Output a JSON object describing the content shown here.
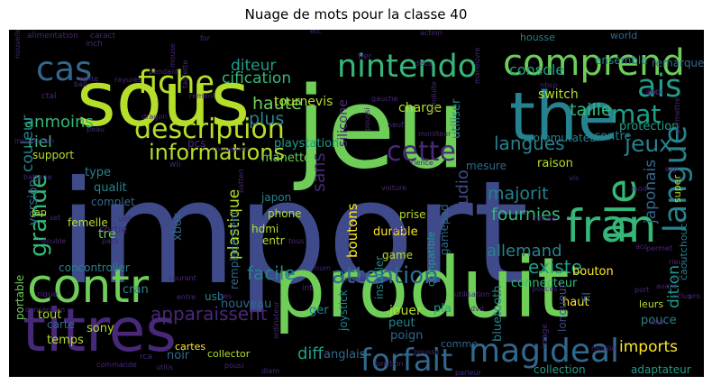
{
  "figure": {
    "title": "Nuage de mots pour la classe 40"
  },
  "palette": {
    "background": "#000000",
    "viridis": [
      "#440154",
      "#482878",
      "#3e4a89",
      "#31688e",
      "#26828e",
      "#1f9e89",
      "#35b779",
      "#6ece58",
      "#b5de2b",
      "#fde725"
    ]
  },
  "words": [
    {
      "text": "import",
      "color": "#3e4a89"
    },
    {
      "text": "produit",
      "color": "#6ece58"
    },
    {
      "text": "jeu",
      "color": "#6ece58"
    },
    {
      "text": "sous",
      "color": "#b5de2b"
    },
    {
      "text": "titres",
      "color": "#482878"
    },
    {
      "text": "the",
      "color": "#26828e"
    },
    {
      "text": "contr",
      "color": "#6ece58"
    },
    {
      "text": "comprend",
      "color": "#6ece58"
    },
    {
      "text": "fran",
      "color": "#35b779"
    },
    {
      "text": "nintendo",
      "color": "#35b779"
    },
    {
      "text": "description",
      "color": "#b5de2b"
    },
    {
      "text": "fiche",
      "color": "#b5de2b"
    },
    {
      "text": "cas",
      "color": "#31688e"
    },
    {
      "text": "magideal",
      "color": "#31688e"
    },
    {
      "text": "forfait",
      "color": "#31688e"
    },
    {
      "text": "attention",
      "color": "#31688e"
    },
    {
      "text": "ble",
      "color": "#35b779"
    },
    {
      "text": "mat",
      "color": "#1f9e89"
    },
    {
      "text": "ais",
      "color": "#1f9e89"
    },
    {
      "text": "langue",
      "color": "#26828e"
    },
    {
      "text": "cette",
      "color": "#482878"
    },
    {
      "text": "jeux",
      "color": "#26828e"
    },
    {
      "text": "informations",
      "color": "#b5de2b"
    },
    {
      "text": "langues",
      "color": "#26828e"
    },
    {
      "text": "grande",
      "color": "#35b779"
    },
    {
      "text": "taille",
      "color": "#35b779"
    },
    {
      "text": "apparaissent",
      "color": "#482878"
    },
    {
      "text": "diteur",
      "color": "#1f9e89"
    },
    {
      "text": "cification",
      "color": "#35b779"
    },
    {
      "text": "anmoins",
      "color": "#35b779"
    },
    {
      "text": "couleur",
      "color": "#26828e"
    },
    {
      "text": "haute",
      "color": "#6ece58"
    },
    {
      "text": "plus",
      "color": "#26828e"
    },
    {
      "text": "riel",
      "color": "#35b779"
    },
    {
      "text": "majorit",
      "color": "#26828e"
    },
    {
      "text": "fournies",
      "color": "#35b779"
    },
    {
      "text": "allemand",
      "color": "#26828e"
    },
    {
      "text": "existe",
      "color": "#1f9e89"
    },
    {
      "text": "facile",
      "color": "#26828e"
    },
    {
      "text": "diff",
      "color": "#1f9e89"
    },
    {
      "text": "imports",
      "color": "#fde725"
    },
    {
      "text": "console",
      "color": "#1f9e89"
    },
    {
      "text": "boutons",
      "color": "#fde725"
    },
    {
      "text": "sans",
      "color": "#482878"
    },
    {
      "text": "audio",
      "color": "#3e4a89"
    },
    {
      "text": "japonais",
      "color": "#31688e"
    },
    {
      "text": "dition",
      "color": "#1f9e89"
    },
    {
      "text": "version",
      "color": "#31688e"
    },
    {
      "text": "plastique",
      "color": "#b5de2b"
    },
    {
      "text": "xbox",
      "color": "#31688e"
    },
    {
      "text": "silicone",
      "color": "#482878"
    },
    {
      "text": "manette",
      "color": "#6ece58"
    },
    {
      "text": "tournevis",
      "color": "#b5de2b"
    },
    {
      "text": "playstation",
      "color": "#1f9e89"
    },
    {
      "text": "pcs",
      "color": "#482878"
    },
    {
      "text": "utiliser",
      "color": "#26828e"
    },
    {
      "text": "charge",
      "color": "#b5de2b"
    },
    {
      "text": "switch",
      "color": "#b5de2b"
    },
    {
      "text": "remarque",
      "color": "#31688e"
    },
    {
      "text": "ensemble",
      "color": "#26828e"
    },
    {
      "text": "housse",
      "color": "#26828e"
    },
    {
      "text": "world",
      "color": "#31688e"
    },
    {
      "text": "protection",
      "color": "#1f9e89"
    },
    {
      "text": "commutateur",
      "color": "#26828e"
    },
    {
      "text": "contre",
      "color": "#26828e"
    },
    {
      "text": "mesure",
      "color": "#31688e"
    },
    {
      "text": "raison",
      "color": "#b5de2b"
    },
    {
      "text": "support",
      "color": "#b5de2b"
    },
    {
      "text": "type",
      "color": "#26828e"
    },
    {
      "text": "qualit",
      "color": "#26828e"
    },
    {
      "text": "complet",
      "color": "#31688e"
    },
    {
      "text": "femelle",
      "color": "#b5de2b"
    },
    {
      "text": "jap",
      "color": "#b5de2b"
    },
    {
      "text": "tre",
      "color": "#6ece58"
    },
    {
      "text": "sortie",
      "color": "#482878"
    },
    {
      "text": "japon",
      "color": "#26828e"
    },
    {
      "text": "phone",
      "color": "#b5de2b"
    },
    {
      "text": "hdmi",
      "color": "#b5de2b"
    },
    {
      "text": "entr",
      "color": "#b5de2b"
    },
    {
      "text": "prise",
      "color": "#b5de2b"
    },
    {
      "text": "durable",
      "color": "#fde725"
    },
    {
      "text": "compatible",
      "color": "#1f9e89"
    },
    {
      "text": "gamepad",
      "color": "#31688e"
    },
    {
      "text": "game",
      "color": "#b5de2b"
    },
    {
      "text": "installer",
      "color": "#26828e"
    },
    {
      "text": "concontroller",
      "color": "#26828e"
    },
    {
      "text": "remplacement",
      "color": "#31688e"
    },
    {
      "text": "usb",
      "color": "#26828e"
    },
    {
      "text": "nouveau",
      "color": "#31688e"
    },
    {
      "text": "cran",
      "color": "#26828e"
    },
    {
      "text": "sony",
      "color": "#b5de2b"
    },
    {
      "text": "temps",
      "color": "#b5de2b"
    },
    {
      "text": "carte",
      "color": "#31688e"
    },
    {
      "text": "tout",
      "color": "#b5de2b"
    },
    {
      "text": "portable",
      "color": "#6ece58"
    },
    {
      "text": "noir",
      "color": "#31688e"
    },
    {
      "text": "joystick",
      "color": "#26828e"
    },
    {
      "text": "jouer",
      "color": "#b5de2b"
    },
    {
      "text": "peut",
      "color": "#26828e"
    },
    {
      "text": "pla",
      "color": "#1f9e89"
    },
    {
      "text": "poign",
      "color": "#31688e"
    },
    {
      "text": "anglais",
      "color": "#31688e"
    },
    {
      "text": "ger",
      "color": "#26828e"
    },
    {
      "text": "bluetooth",
      "color": "#26828e"
    },
    {
      "text": "connecteur",
      "color": "#35b779"
    },
    {
      "text": "bouton",
      "color": "#fde725"
    },
    {
      "text": "haut",
      "color": "#fde725"
    },
    {
      "text": "longueur",
      "color": "#3e4a89"
    },
    {
      "text": "pouce",
      "color": "#26828e"
    },
    {
      "text": "adaptateur",
      "color": "#1f9e89"
    },
    {
      "text": "collection",
      "color": "#1f9e89"
    },
    {
      "text": "comme",
      "color": "#31688e"
    },
    {
      "text": "cartes",
      "color": "#fde725"
    },
    {
      "text": "collector",
      "color": "#b5de2b"
    },
    {
      "text": "caoutchouc",
      "color": "#26828e"
    },
    {
      "text": "super",
      "color": "#b5de2b"
    },
    {
      "text": "leurs",
      "color": "#b5de2b"
    },
    {
      "text": "fil",
      "color": "#31688e"
    },
    {
      "text": "alimentation",
      "color": "#482878"
    },
    {
      "text": "caract",
      "color": "#482878"
    },
    {
      "text": "inch",
      "color": "#482878"
    },
    {
      "text": "ctal",
      "color": "#482878"
    },
    {
      "text": "batterie",
      "color": "#482878"
    },
    {
      "text": "connexion",
      "color": "#482878"
    },
    {
      "text": "installation",
      "color": "#482878"
    },
    {
      "text": "dragon",
      "color": "#482878"
    },
    {
      "text": "wii",
      "color": "#482878"
    },
    {
      "text": "peau",
      "color": "#482878"
    },
    {
      "text": "pack",
      "color": "#482878"
    },
    {
      "text": "double",
      "color": "#482878"
    },
    {
      "text": "rique",
      "color": "#482878"
    },
    {
      "text": "conception",
      "color": "#482878"
    },
    {
      "text": "commande",
      "color": "#482878"
    },
    {
      "text": "utilis",
      "color": "#482878"
    },
    {
      "text": "rca",
      "color": "#482878"
    },
    {
      "text": "entre",
      "color": "#482878"
    },
    {
      "text": "tres",
      "color": "#482878"
    },
    {
      "text": "courant",
      "color": "#482878"
    },
    {
      "text": "signal",
      "color": "#482878"
    },
    {
      "text": "utilisation",
      "color": "#482878"
    },
    {
      "text": "num",
      "color": "#482878"
    },
    {
      "text": "diam",
      "color": "#482878"
    },
    {
      "text": "fonction",
      "color": "#482878"
    },
    {
      "text": "parleur",
      "color": "#482878"
    },
    {
      "text": "mobile",
      "color": "#482878"
    },
    {
      "text": "image",
      "color": "#482878"
    },
    {
      "text": "dvd",
      "color": "#482878"
    },
    {
      "text": "voiture",
      "color": "#482878"
    },
    {
      "text": "moniteur",
      "color": "#482878"
    },
    {
      "text": "rience",
      "color": "#482878"
    },
    {
      "text": "gauche",
      "color": "#482878"
    },
    {
      "text": "neuf",
      "color": "#482878"
    },
    {
      "text": "deux",
      "color": "#482878"
    },
    {
      "text": "tier",
      "color": "#482878"
    },
    {
      "text": "action",
      "color": "#482878"
    },
    {
      "text": "rence",
      "color": "#482878"
    },
    {
      "text": "mod",
      "color": "#482878"
    },
    {
      "text": "vis",
      "color": "#482878"
    },
    {
      "text": "exp",
      "color": "#482878"
    },
    {
      "text": "acc",
      "color": "#482878"
    },
    {
      "text": "permet",
      "color": "#482878"
    },
    {
      "text": "port",
      "color": "#482878"
    },
    {
      "text": "inclus",
      "color": "#482878"
    },
    {
      "text": "avant",
      "color": "#482878"
    },
    {
      "text": "kit",
      "color": "#482878"
    },
    {
      "text": "pro",
      "color": "#482878"
    },
    {
      "text": "jack",
      "color": "#482878"
    },
    {
      "text": "and",
      "color": "#482878"
    },
    {
      "text": "permettre",
      "color": "#482878"
    },
    {
      "text": "nbsp",
      "color": "#482878"
    },
    {
      "text": "rement",
      "color": "#482878"
    },
    {
      "text": "pendant",
      "color": "#482878"
    },
    {
      "text": "rayures",
      "color": "#482878"
    },
    {
      "text": "ball",
      "color": "#482878"
    },
    {
      "text": "rente",
      "color": "#482878"
    },
    {
      "text": "set",
      "color": "#482878"
    },
    {
      "text": "int",
      "color": "#482878"
    },
    {
      "text": "prot",
      "color": "#482878"
    },
    {
      "text": "tous",
      "color": "#482878"
    },
    {
      "text": "pousi",
      "color": "#482878"
    },
    {
      "text": "ordinateur",
      "color": "#482878"
    },
    {
      "text": "pouces",
      "color": "#482878"
    },
    {
      "text": "for",
      "color": "#482878"
    },
    {
      "text": "etc",
      "color": "#482878"
    },
    {
      "text": "vid",
      "color": "#482878"
    },
    {
      "text": "leur",
      "color": "#482878"
    },
    {
      "text": "rieur",
      "color": "#482878"
    },
    {
      "text": "nouvelle",
      "color": "#482878"
    },
    {
      "text": "poussi",
      "color": "#482878"
    },
    {
      "text": "batteri",
      "color": "#482878"
    },
    {
      "text": "pousse",
      "color": "#482878"
    },
    {
      "text": "tablette",
      "color": "#482878"
    },
    {
      "text": "mouse",
      "color": "#482878"
    },
    {
      "text": "maneuvre",
      "color": "#482878"
    },
    {
      "text": "conduite",
      "color": "#482878"
    }
  ]
}
